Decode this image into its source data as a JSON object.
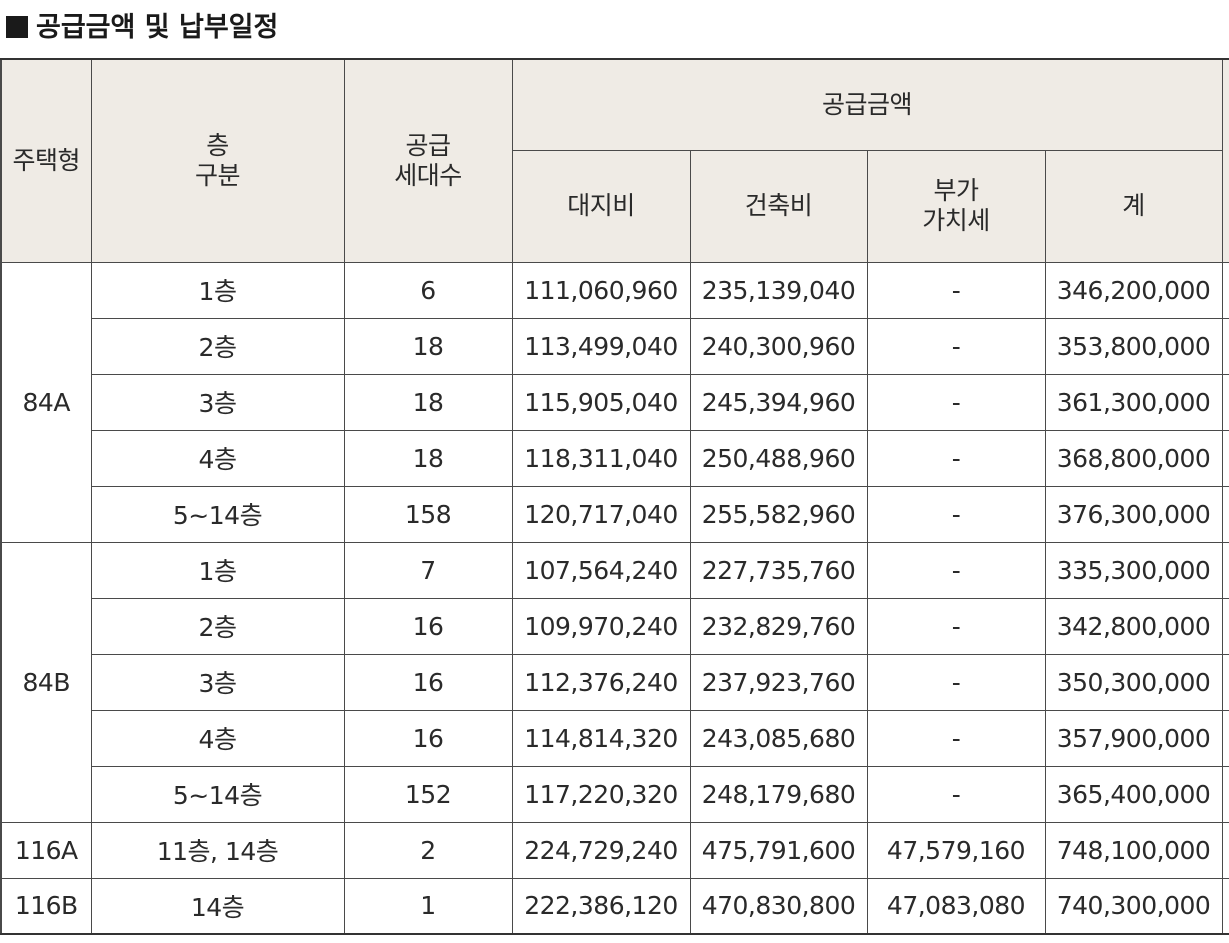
{
  "title": "공급금액 및 납부일정",
  "headers": {
    "type": "주택형",
    "floor": [
      "층",
      "구분"
    ],
    "units": [
      "공급",
      "세대수"
    ],
    "price_group": "공급금액",
    "land": "대지비",
    "building": "건축비",
    "vat": [
      "부가",
      "가치세"
    ],
    "total": "계"
  },
  "groups": [
    {
      "type": "84A",
      "rows": [
        {
          "floor": "1층",
          "units": "6",
          "land": "111,060,960",
          "building": "235,139,040",
          "vat": "-",
          "total": "346,200,000"
        },
        {
          "floor": "2층",
          "units": "18",
          "land": "113,499,040",
          "building": "240,300,960",
          "vat": "-",
          "total": "353,800,000"
        },
        {
          "floor": "3층",
          "units": "18",
          "land": "115,905,040",
          "building": "245,394,960",
          "vat": "-",
          "total": "361,300,000"
        },
        {
          "floor": "4층",
          "units": "18",
          "land": "118,311,040",
          "building": "250,488,960",
          "vat": "-",
          "total": "368,800,000"
        },
        {
          "floor": "5~14층",
          "units": "158",
          "land": "120,717,040",
          "building": "255,582,960",
          "vat": "-",
          "total": "376,300,000"
        }
      ]
    },
    {
      "type": "84B",
      "rows": [
        {
          "floor": "1층",
          "units": "7",
          "land": "107,564,240",
          "building": "227,735,760",
          "vat": "-",
          "total": "335,300,000"
        },
        {
          "floor": "2층",
          "units": "16",
          "land": "109,970,240",
          "building": "232,829,760",
          "vat": "-",
          "total": "342,800,000"
        },
        {
          "floor": "3층",
          "units": "16",
          "land": "112,376,240",
          "building": "237,923,760",
          "vat": "-",
          "total": "350,300,000"
        },
        {
          "floor": "4층",
          "units": "16",
          "land": "114,814,320",
          "building": "243,085,680",
          "vat": "-",
          "total": "357,900,000"
        },
        {
          "floor": "5~14층",
          "units": "152",
          "land": "117,220,320",
          "building": "248,179,680",
          "vat": "-",
          "total": "365,400,000"
        }
      ]
    },
    {
      "type": "116A",
      "rows": [
        {
          "floor": "11층, 14층",
          "units": "2",
          "land": "224,729,240",
          "building": "475,791,600",
          "vat": "47,579,160",
          "total": "748,100,000"
        }
      ]
    },
    {
      "type": "116B",
      "rows": [
        {
          "floor": "14층",
          "units": "1",
          "land": "222,386,120",
          "building": "470,830,800",
          "vat": "47,083,080",
          "total": "740,300,000"
        }
      ]
    }
  ]
}
